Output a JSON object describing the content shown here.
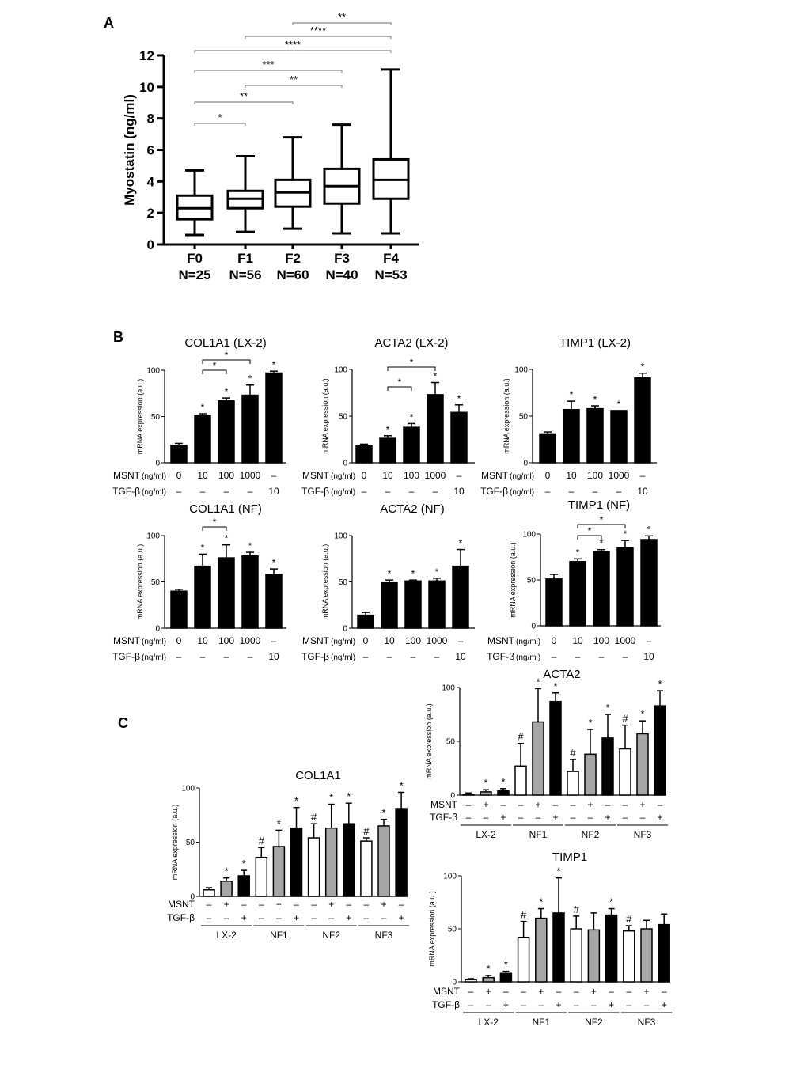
{
  "panel_labels": {
    "a": "A",
    "b": "B",
    "c": "C"
  },
  "chart_data": [
    {
      "id": "A",
      "type": "box",
      "ylabel": "Myostatin (ng/ml)",
      "ylim": [
        0,
        12
      ],
      "yticks": [
        "0",
        "2",
        "4",
        "6",
        "8",
        "10",
        "12"
      ],
      "categories": [
        "F0",
        "F1",
        "F2",
        "F3",
        "F4"
      ],
      "n_labels": [
        "N=25",
        "N=56",
        "N=60",
        "N=40",
        "N=53"
      ],
      "boxes": [
        {
          "min": 0.6,
          "q1": 1.6,
          "median": 2.3,
          "q3": 3.1,
          "max": 4.7
        },
        {
          "min": 0.8,
          "q1": 2.3,
          "median": 2.9,
          "q3": 3.4,
          "max": 5.6
        },
        {
          "min": 1.0,
          "q1": 2.4,
          "median": 3.3,
          "q3": 4.1,
          "max": 6.8
        },
        {
          "min": 0.7,
          "q1": 2.6,
          "median": 3.7,
          "q3": 4.8,
          "max": 7.6
        },
        {
          "min": 0.7,
          "q1": 2.9,
          "median": 4.1,
          "q3": 5.4,
          "max": 11.1
        }
      ],
      "significance": [
        {
          "from": 0,
          "to": 1,
          "label": "*"
        },
        {
          "from": 0,
          "to": 2,
          "label": "**"
        },
        {
          "from": 1,
          "to": 3,
          "label": "**"
        },
        {
          "from": 0,
          "to": 3,
          "label": "***"
        },
        {
          "from": 0,
          "to": 4,
          "label": "****"
        },
        {
          "from": 1,
          "to": 4,
          "label": "****"
        },
        {
          "from": 2,
          "to": 4,
          "label": "**"
        }
      ]
    },
    {
      "id": "B-COL1A1-LX2",
      "type": "bar",
      "title": "COL1A1 (LX-2)",
      "ylabel": "mRNA expression (a.u.)",
      "ylim": [
        0,
        100
      ],
      "yticks": [
        "0",
        "50",
        "100"
      ],
      "msnt_label": "MSNT",
      "msnt_unit": "(ng/ml)",
      "msnt": [
        "0",
        "10",
        "100",
        "1000",
        "–"
      ],
      "tgf_label": "TGF-β",
      "tgf_unit": "(ng/ml)",
      "tgf": [
        "–",
        "–",
        "–",
        "–",
        "10"
      ],
      "values": [
        19,
        51,
        67,
        73,
        97
      ],
      "errors": [
        2,
        2,
        3,
        11,
        2
      ],
      "stars": [
        "",
        "*",
        "*",
        "*",
        "*"
      ],
      "brackets": [
        {
          "from": 1,
          "to": 2,
          "label": "*"
        },
        {
          "from": 1,
          "to": 3,
          "label": "*"
        }
      ]
    },
    {
      "id": "B-ACTA2-LX2",
      "type": "bar",
      "title": "ACTA2 (LX-2)",
      "ylabel": "mRNA expression (a.u.)",
      "ylim": [
        0,
        100
      ],
      "yticks": [
        "0",
        "50",
        "100"
      ],
      "msnt_label": "MSNT",
      "msnt_unit": "(ng/ml)",
      "msnt": [
        "0",
        "10",
        "100",
        "1000",
        "–"
      ],
      "tgf_label": "TGF-β",
      "tgf_unit": "(ng/ml)",
      "tgf": [
        "–",
        "–",
        "–",
        "–",
        "10"
      ],
      "values": [
        18,
        27,
        38,
        73,
        54
      ],
      "errors": [
        2,
        2,
        4,
        13,
        8
      ],
      "stars": [
        "",
        "*",
        "*",
        "*",
        "*"
      ],
      "brackets": [
        {
          "from": 1,
          "to": 2,
          "label": "*"
        },
        {
          "from": 1,
          "to": 3,
          "label": "*"
        }
      ]
    },
    {
      "id": "B-TIMP1-LX2",
      "type": "bar",
      "title": "TIMP1 (LX-2)",
      "ylabel": "mRNA expression (a.u.)",
      "ylim": [
        0,
        100
      ],
      "yticks": [
        "0",
        "50",
        "100"
      ],
      "msnt_label": "MSNT",
      "msnt_unit": "(ng/ml)",
      "msnt": [
        "0",
        "10",
        "100",
        "1000",
        "–"
      ],
      "tgf_label": "TGF-β",
      "tgf_unit": "(ng/ml)",
      "tgf": [
        "–",
        "–",
        "–",
        "–",
        "10"
      ],
      "values": [
        31,
        57,
        58,
        56,
        91
      ],
      "errors": [
        2,
        9,
        3,
        0,
        5
      ],
      "stars": [
        "",
        "*",
        "*",
        "*",
        "*"
      ],
      "brackets": []
    },
    {
      "id": "B-COL1A1-NF",
      "type": "bar",
      "title": "COL1A1 (NF)",
      "ylabel": "mRNA expression (a.u.)",
      "ylim": [
        0,
        100
      ],
      "yticks": [
        "0",
        "50",
        "100"
      ],
      "msnt_label": "MSNT",
      "msnt_unit": "(ng/ml)",
      "msnt": [
        "0",
        "10",
        "100",
        "1000",
        "–"
      ],
      "tgf_label": "TGF-β",
      "tgf_unit": "(ng/ml)",
      "tgf": [
        "–",
        "–",
        "–",
        "–",
        "10"
      ],
      "values": [
        40,
        67,
        76,
        78,
        58
      ],
      "errors": [
        2,
        13,
        14,
        4,
        6
      ],
      "stars": [
        "",
        "*",
        "*",
        "*",
        "*"
      ],
      "brackets": [
        {
          "from": 1,
          "to": 2,
          "label": "*"
        }
      ]
    },
    {
      "id": "B-ACTA2-NF",
      "type": "bar",
      "title": "ACTA2 (NF)",
      "ylabel": "mRNA expression (a.u.)",
      "ylim": [
        0,
        100
      ],
      "yticks": [
        "0",
        "50",
        "100"
      ],
      "msnt_label": "MSNT",
      "msnt_unit": "(ng/ml)",
      "msnt": [
        "0",
        "10",
        "100",
        "1000",
        "–"
      ],
      "tgf_label": "TGF-β",
      "tgf_unit": "(ng/ml)",
      "tgf": [
        "–",
        "–",
        "–",
        "–",
        "10"
      ],
      "values": [
        14,
        49,
        51,
        51,
        67
      ],
      "errors": [
        3,
        3,
        1,
        3,
        18
      ],
      "stars": [
        "",
        "*",
        "*",
        "*",
        "*"
      ],
      "brackets": []
    },
    {
      "id": "B-TIMP1-NF",
      "type": "bar",
      "title": "TIMP1 (NF)",
      "ylabel": "mRNA expression (a.u.)",
      "ylim": [
        0,
        100
      ],
      "yticks": [
        "0",
        "50",
        "100"
      ],
      "msnt_label": "MSNT",
      "msnt_unit": "(ng/ml)",
      "msnt": [
        "0",
        "10",
        "100",
        "1000",
        "–"
      ],
      "tgf_label": "TGF-β",
      "tgf_unit": "(ng/ml)",
      "tgf": [
        "–",
        "–",
        "–",
        "–",
        "10"
      ],
      "values": [
        51,
        70,
        81,
        85,
        94
      ],
      "errors": [
        5,
        3,
        2,
        8,
        4
      ],
      "stars": [
        "",
        "*",
        "*",
        "*",
        "*"
      ],
      "brackets": [
        {
          "from": 1,
          "to": 2,
          "label": "*"
        },
        {
          "from": 1,
          "to": 3,
          "label": "*"
        }
      ]
    },
    {
      "id": "C-COL1A1",
      "type": "bar",
      "title": "COL1A1",
      "ylabel": "mRNA expression (a.u.)",
      "ylim": [
        0,
        100
      ],
      "yticks": [
        "0",
        "50",
        "100"
      ],
      "msnt_label": "MSNT",
      "tgf_label": "TGF-β",
      "msnt": [
        "–",
        "+",
        "–",
        "–",
        "+",
        "–",
        "–",
        "+",
        "–",
        "–",
        "+",
        "–"
      ],
      "tgf": [
        "–",
        "–",
        "+",
        "–",
        "–",
        "+",
        "–",
        "–",
        "+",
        "–",
        "–",
        "+"
      ],
      "groups": [
        "LX-2",
        "NF1",
        "NF2",
        "NF3"
      ],
      "fills": [
        "white",
        "gray",
        "black",
        "white",
        "gray",
        "black",
        "white",
        "gray",
        "black",
        "white",
        "gray",
        "black"
      ],
      "values": [
        6,
        14,
        19,
        36,
        46,
        63,
        54,
        63,
        67,
        51,
        65,
        81
      ],
      "errors": [
        2,
        3,
        5,
        9,
        15,
        19,
        13,
        22,
        19,
        3,
        6,
        15
      ],
      "stars": [
        "",
        "*",
        "*",
        "#",
        "*",
        "*",
        "#",
        "*",
        "*",
        "#",
        "*",
        "*"
      ]
    },
    {
      "id": "C-ACTA2",
      "type": "bar",
      "title": "ACTA2",
      "ylabel": "mRNA expression (a.u.)",
      "ylim": [
        0,
        100
      ],
      "yticks": [
        "0",
        "50",
        "100"
      ],
      "msnt_label": "MSNT",
      "tgf_label": "TGF-β",
      "msnt": [
        "–",
        "+",
        "–",
        "–",
        "+",
        "–",
        "–",
        "+",
        "–",
        "–",
        "+",
        "–"
      ],
      "tgf": [
        "–",
        "–",
        "+",
        "–",
        "–",
        "+",
        "–",
        "–",
        "+",
        "–",
        "–",
        "+"
      ],
      "groups": [
        "LX-2",
        "NF1",
        "NF2",
        "NF3"
      ],
      "fills": [
        "white",
        "gray",
        "black",
        "white",
        "gray",
        "black",
        "white",
        "gray",
        "black",
        "white",
        "gray",
        "black"
      ],
      "values": [
        1,
        3,
        4,
        27,
        68,
        87,
        22,
        38,
        53,
        43,
        57,
        83
      ],
      "errors": [
        1,
        2,
        2,
        21,
        31,
        8,
        11,
        23,
        22,
        22,
        12,
        14
      ],
      "stars": [
        "",
        "*",
        "*",
        "#",
        "*",
        "*",
        "#",
        "*",
        "*",
        "#",
        "*",
        "*"
      ]
    },
    {
      "id": "C-TIMP1",
      "type": "bar",
      "title": "TIMP1",
      "ylabel": "mRNA expression (a.u.)",
      "ylim": [
        0,
        100
      ],
      "yticks": [
        "0",
        "50",
        "100"
      ],
      "msnt_label": "MSNT",
      "tgf_label": "TGF-β",
      "msnt": [
        "–",
        "+",
        "–",
        "–",
        "+",
        "–",
        "–",
        "+",
        "–",
        "–",
        "+",
        "–"
      ],
      "tgf": [
        "–",
        "–",
        "+",
        "–",
        "–",
        "+",
        "–",
        "–",
        "+",
        "–",
        "–",
        "+"
      ],
      "groups": [
        "LX-2",
        "NF1",
        "NF2",
        "NF3"
      ],
      "fills": [
        "white",
        "gray",
        "black",
        "white",
        "gray",
        "black",
        "white",
        "gray",
        "black",
        "white",
        "gray",
        "black"
      ],
      "values": [
        2,
        4,
        8,
        42,
        60,
        65,
        50,
        49,
        63,
        48,
        50,
        54
      ],
      "errors": [
        1,
        2,
        2,
        15,
        9,
        33,
        12,
        16,
        6,
        5,
        8,
        10
      ],
      "stars": [
        "",
        "*",
        "*",
        "#",
        "*",
        "*",
        "#",
        "",
        "*",
        "#",
        "",
        ""
      ]
    }
  ]
}
